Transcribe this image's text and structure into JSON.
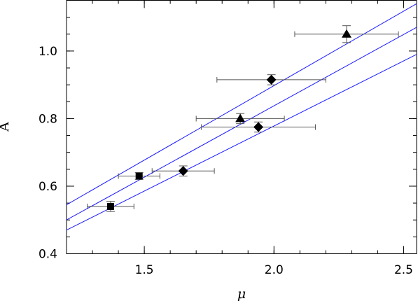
{
  "chart_data": {
    "type": "scatter",
    "title": "",
    "xlabel": "μ",
    "ylabel": "A",
    "xlim": [
      1.2,
      2.55
    ],
    "ylim": [
      0.4,
      1.15
    ],
    "x_ticks": [
      1.5,
      2.0,
      2.5
    ],
    "x_tick_labels": [
      "1.5",
      "2.0",
      "2.5"
    ],
    "y_ticks": [
      0.4,
      0.6,
      0.8,
      1.0
    ],
    "y_tick_labels": [
      "0.4",
      "0.6",
      "0.8",
      "1.0"
    ],
    "x_minor_step": 0.1,
    "y_minor_step": 0.05,
    "grid": false,
    "legend": "none",
    "colors": {
      "markers": "#000000",
      "errorbars": "#555555",
      "fit_lines": "#1a1aff",
      "frame": "#000000"
    },
    "series": [
      {
        "marker": "square",
        "points": [
          {
            "x": 1.37,
            "y": 0.54,
            "x_err": 0.09,
            "y_err": 0.015
          },
          {
            "x": 1.48,
            "y": 0.63,
            "x_err": 0.08,
            "y_err": 0.01
          }
        ]
      },
      {
        "marker": "diamond",
        "points": [
          {
            "x": 1.65,
            "y": 0.645,
            "x_err": 0.12,
            "y_err": 0.015
          },
          {
            "x": 1.94,
            "y": 0.775,
            "x_err": 0.22,
            "y_err": 0.015
          },
          {
            "x": 1.99,
            "y": 0.915,
            "x_err": 0.21,
            "y_err": 0.015
          }
        ]
      },
      {
        "marker": "triangle",
        "points": [
          {
            "x": 1.87,
            "y": 0.8,
            "x_err": 0.17,
            "y_err": 0.015
          },
          {
            "x": 2.28,
            "y": 1.05,
            "x_err": 0.2,
            "y_err": 0.025
          }
        ]
      }
    ],
    "lines": [
      {
        "x": [
          1.2,
          2.55
        ],
        "y": [
          0.545,
          1.14
        ]
      },
      {
        "x": [
          1.2,
          2.55
        ],
        "y": [
          0.5,
          1.07
        ]
      },
      {
        "x": [
          1.2,
          2.55
        ],
        "y": [
          0.47,
          0.99
        ]
      }
    ]
  }
}
